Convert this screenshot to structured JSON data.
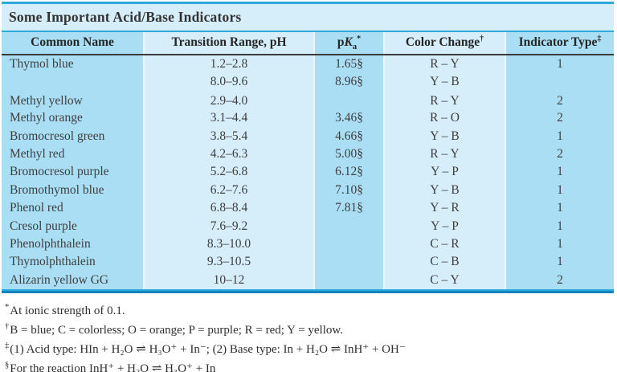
{
  "title": "Some Important Acid/Base Indicators",
  "colors": {
    "column_dark": "#a9def4",
    "column_light": "#d6edfa",
    "accent_line": "#2ea9dc",
    "header_rule": "#3b3b3b",
    "bottom_rule_dark": "#1583c0"
  },
  "table": {
    "columns": {
      "common": "Common Name",
      "transition": "Transition Range, pH",
      "pka": {
        "p": "p",
        "k": "K",
        "sub": "a",
        "sup": "*"
      },
      "color_change": {
        "label": "Color Change",
        "sup": "†"
      },
      "indicator_type": {
        "label": "Indicator Type",
        "sup": "‡"
      }
    },
    "rows": [
      {
        "name": "Thymol blue",
        "range": "1.2–2.8",
        "pka": "1.65§",
        "change": "R – Y",
        "type": "1"
      },
      {
        "name": "",
        "range": "8.0–9.6",
        "pka": "8.96§",
        "change": "Y – B",
        "type": ""
      },
      {
        "name": "Methyl yellow",
        "range": "2.9–4.0",
        "pka": "",
        "change": "R – Y",
        "type": "2"
      },
      {
        "name": "Methyl orange",
        "range": "3.1–4.4",
        "pka": "3.46§",
        "change": "R – O",
        "type": "2"
      },
      {
        "name": "Bromocresol green",
        "range": "3.8–5.4",
        "pka": "4.66§",
        "change": "Y – B",
        "type": "1"
      },
      {
        "name": "Methyl red",
        "range": "4.2–6.3",
        "pka": "5.00§",
        "change": "R – Y",
        "type": "2"
      },
      {
        "name": "Bromocresol purple",
        "range": "5.2–6.8",
        "pka": "6.12§",
        "change": "Y – P",
        "type": "1"
      },
      {
        "name": "Bromothymol blue",
        "range": "6.2–7.6",
        "pka": "7.10§",
        "change": "Y – B",
        "type": "1"
      },
      {
        "name": "Phenol red",
        "range": "6.8–8.4",
        "pka": "7.81§",
        "change": "Y – R",
        "type": "1"
      },
      {
        "name": "Cresol purple",
        "range": "7.6–9.2",
        "pka": "",
        "change": "Y – P",
        "type": "1"
      },
      {
        "name": "Phenolphthalein",
        "range": "8.3–10.0",
        "pka": "",
        "change": "C – R",
        "type": "1"
      },
      {
        "name": "Thymolphthalein",
        "range": "9.3–10.5",
        "pka": "",
        "change": "C – B",
        "type": "1"
      },
      {
        "name": "Alizarin yellow GG",
        "range": "10–12",
        "pka": "",
        "change": "C – Y",
        "type": "2"
      }
    ]
  },
  "footnotes": [
    {
      "marker": "*",
      "text": "At ionic strength of 0.1."
    },
    {
      "marker": "†",
      "text": "B = blue; C = colorless; O = orange; P = purple; R = red; Y = yellow."
    },
    {
      "marker": "‡",
      "text": "(1) Acid type: HIn + H₂O ⇌ H₃O⁺ + In⁻; (2) Base type: In + H₂O ⇌ InH⁺ + OH⁻"
    },
    {
      "marker": "§",
      "text": "For the reaction InH⁺ + H₂O ⇌ H₃O⁺ + In"
    }
  ]
}
